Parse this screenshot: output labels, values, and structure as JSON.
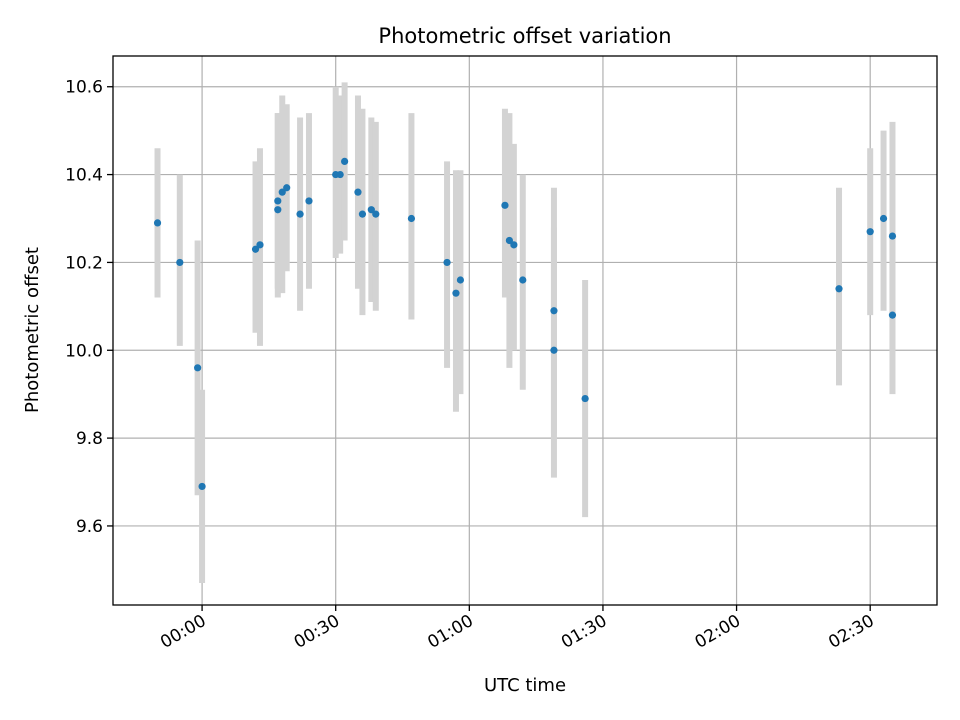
{
  "chart_data": {
    "type": "scatter",
    "title": "Photometric offset variation",
    "xlabel": "UTC time",
    "ylabel": "Photometric offset",
    "x_unit": "UTC",
    "xlim": [
      "23:40",
      "02:45"
    ],
    "ylim": [
      9.42,
      10.67
    ],
    "x_ticks": [
      "00:00",
      "00:30",
      "01:00",
      "01:30",
      "02:00",
      "02:30"
    ],
    "y_ticks": [
      9.6,
      9.8,
      10.0,
      10.2,
      10.4,
      10.6
    ],
    "grid": true,
    "legend": "none",
    "errorbar_color": "#d3d3d3",
    "point_color": "#1f77b4",
    "points": [
      {
        "t": "23:50",
        "y": 10.29,
        "ylow": 10.12,
        "yhigh": 10.46
      },
      {
        "t": "23:55",
        "y": 10.2,
        "ylow": 10.01,
        "yhigh": 10.4
      },
      {
        "t": "23:59",
        "y": 9.96,
        "ylow": 9.67,
        "yhigh": 10.25
      },
      {
        "t": "00:00",
        "y": 9.69,
        "ylow": 9.47,
        "yhigh": 9.91
      },
      {
        "t": "00:12",
        "y": 10.23,
        "ylow": 10.04,
        "yhigh": 10.43
      },
      {
        "t": "00:13",
        "y": 10.24,
        "ylow": 10.01,
        "yhigh": 10.46
      },
      {
        "t": "00:17",
        "y": 10.32,
        "ylow": 10.12,
        "yhigh": 10.54
      },
      {
        "t": "00:17",
        "y": 10.34,
        "ylow": 10.14,
        "yhigh": 10.54
      },
      {
        "t": "00:18",
        "y": 10.36,
        "ylow": 10.13,
        "yhigh": 10.58
      },
      {
        "t": "00:19",
        "y": 10.37,
        "ylow": 10.18,
        "yhigh": 10.56
      },
      {
        "t": "00:22",
        "y": 10.31,
        "ylow": 10.09,
        "yhigh": 10.53
      },
      {
        "t": "00:24",
        "y": 10.34,
        "ylow": 10.14,
        "yhigh": 10.54
      },
      {
        "t": "00:30",
        "y": 10.4,
        "ylow": 10.21,
        "yhigh": 10.6
      },
      {
        "t": "00:31",
        "y": 10.4,
        "ylow": 10.22,
        "yhigh": 10.58
      },
      {
        "t": "00:32",
        "y": 10.43,
        "ylow": 10.25,
        "yhigh": 10.61
      },
      {
        "t": "00:35",
        "y": 10.36,
        "ylow": 10.14,
        "yhigh": 10.58
      },
      {
        "t": "00:36",
        "y": 10.31,
        "ylow": 10.08,
        "yhigh": 10.55
      },
      {
        "t": "00:38",
        "y": 10.32,
        "ylow": 10.11,
        "yhigh": 10.53
      },
      {
        "t": "00:39",
        "y": 10.31,
        "ylow": 10.09,
        "yhigh": 10.52
      },
      {
        "t": "00:47",
        "y": 10.3,
        "ylow": 10.07,
        "yhigh": 10.54
      },
      {
        "t": "00:55",
        "y": 10.2,
        "ylow": 9.96,
        "yhigh": 10.43
      },
      {
        "t": "00:57",
        "y": 10.13,
        "ylow": 9.86,
        "yhigh": 10.41
      },
      {
        "t": "00:58",
        "y": 10.16,
        "ylow": 9.9,
        "yhigh": 10.41
      },
      {
        "t": "01:08",
        "y": 10.33,
        "ylow": 10.12,
        "yhigh": 10.55
      },
      {
        "t": "01:09",
        "y": 10.25,
        "ylow": 9.96,
        "yhigh": 10.54
      },
      {
        "t": "01:10",
        "y": 10.24,
        "ylow": 10.0,
        "yhigh": 10.47
      },
      {
        "t": "01:12",
        "y": 10.16,
        "ylow": 9.91,
        "yhigh": 10.4
      },
      {
        "t": "01:19",
        "y": 10.09,
        "ylow": 9.81,
        "yhigh": 10.37
      },
      {
        "t": "01:19",
        "y": 10.0,
        "ylow": 9.71,
        "yhigh": 10.28
      },
      {
        "t": "01:26",
        "y": 9.89,
        "ylow": 9.62,
        "yhigh": 10.16
      },
      {
        "t": "02:23",
        "y": 10.14,
        "ylow": 9.92,
        "yhigh": 10.37
      },
      {
        "t": "02:30",
        "y": 10.27,
        "ylow": 10.08,
        "yhigh": 10.46
      },
      {
        "t": "02:33",
        "y": 10.3,
        "ylow": 10.09,
        "yhigh": 10.5
      },
      {
        "t": "02:35",
        "y": 10.08,
        "ylow": 9.9,
        "yhigh": 10.26
      },
      {
        "t": "02:35",
        "y": 10.26,
        "ylow": 10.0,
        "yhigh": 10.52
      }
    ]
  }
}
